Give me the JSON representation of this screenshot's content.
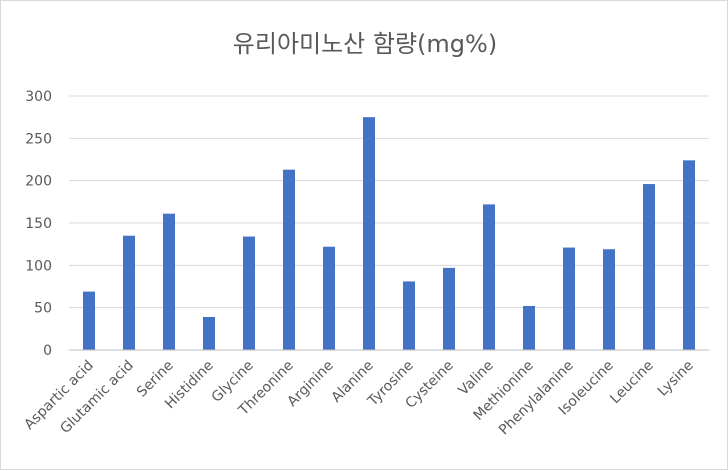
{
  "chart_data": {
    "type": "bar",
    "title": "유리아미노산 함량(mg%)",
    "xlabel": "",
    "ylabel": "",
    "categories": [
      "Aspartic acid",
      "Glutamic acid",
      "Serine",
      "Histidine",
      "Glycine",
      "Threonine",
      "Arginine",
      "Alanine",
      "Tyrosine",
      "Cysteine",
      "Valine",
      "Methionine",
      "Phenylalanine",
      "Isoleucine",
      "Leucine",
      "Lysine"
    ],
    "values": [
      69,
      135,
      161,
      39,
      134,
      213,
      122,
      275,
      81,
      97,
      172,
      52,
      121,
      119,
      196,
      224
    ],
    "ylim": [
      0,
      300
    ],
    "yticks": [
      0,
      50,
      100,
      150,
      200,
      250,
      300
    ],
    "grid": true,
    "legend": "none",
    "bar_color": "#4472c4"
  }
}
